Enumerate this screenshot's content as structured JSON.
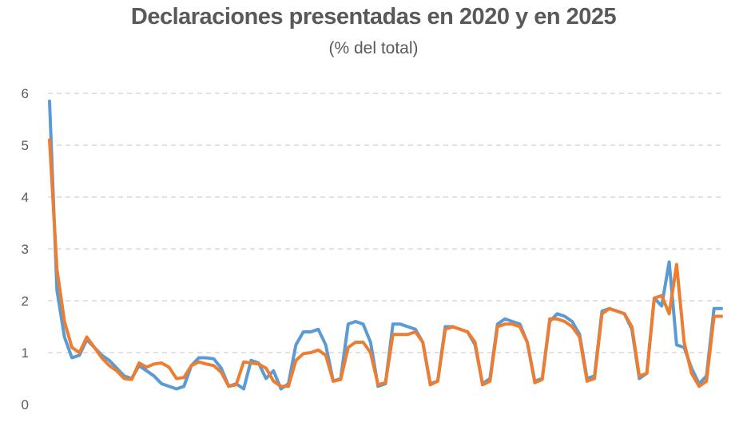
{
  "chart_data": {
    "type": "line",
    "title": "Declaraciones presentadas en 2020 y en 2025",
    "subtitle": "(% del total)",
    "xlabel": "",
    "ylabel": "",
    "ylim": [
      0,
      6
    ],
    "yticks": [
      "0",
      "1",
      "2",
      "3",
      "4",
      "5",
      "6"
    ],
    "grid": true,
    "legend": "none",
    "series": [
      {
        "color": "#5B9BD5",
        "x": [
          0,
          1,
          2,
          3,
          4,
          5,
          6,
          7,
          8,
          9,
          10,
          11,
          12,
          13,
          14,
          15,
          16,
          17,
          18,
          19,
          20,
          21,
          22,
          23,
          24,
          25,
          26,
          27,
          28,
          29,
          30,
          31,
          32,
          33,
          34,
          35,
          36,
          37,
          38,
          39,
          40,
          41,
          42,
          43,
          44,
          45,
          46,
          47,
          48,
          49,
          50,
          51,
          52,
          53,
          54,
          55,
          56,
          57,
          58,
          59,
          60,
          61,
          62,
          63,
          64,
          65,
          66,
          67,
          68,
          69,
          70,
          71,
          72,
          73,
          74,
          75,
          76,
          77,
          78,
          79,
          80,
          81,
          82,
          83,
          84,
          85,
          86,
          87,
          88,
          89,
          90
        ],
        "y": [
          5.85,
          2.2,
          1.3,
          0.9,
          0.95,
          1.25,
          1.1,
          0.95,
          0.85,
          0.7,
          0.55,
          0.5,
          0.75,
          0.65,
          0.55,
          0.4,
          0.35,
          0.3,
          0.35,
          0.75,
          0.9,
          0.9,
          0.88,
          0.7,
          0.35,
          0.4,
          0.3,
          0.85,
          0.8,
          0.5,
          0.65,
          0.3,
          0.4,
          1.15,
          1.4,
          1.4,
          1.45,
          1.15,
          0.45,
          0.5,
          1.55,
          1.6,
          1.55,
          1.2,
          0.35,
          0.4,
          1.55,
          1.55,
          1.5,
          1.45,
          1.2,
          0.4,
          0.45,
          1.5,
          1.5,
          1.45,
          1.4,
          1.15,
          0.4,
          0.5,
          1.55,
          1.65,
          1.6,
          1.55,
          1.2,
          0.45,
          0.5,
          1.6,
          1.75,
          1.7,
          1.6,
          1.35,
          0.5,
          0.55,
          1.8,
          1.85,
          1.8,
          1.75,
          1.45,
          0.5,
          0.6,
          2.05,
          1.9,
          2.75,
          1.15,
          1.1,
          0.7,
          0.4,
          0.55,
          1.85,
          1.85
        ]
      },
      {
        "color": "#ED7D31",
        "x": [
          0,
          1,
          2,
          3,
          4,
          5,
          6,
          7,
          8,
          9,
          10,
          11,
          12,
          13,
          14,
          15,
          16,
          17,
          18,
          19,
          20,
          21,
          22,
          23,
          24,
          25,
          26,
          27,
          28,
          29,
          30,
          31,
          32,
          33,
          34,
          35,
          36,
          37,
          38,
          39,
          40,
          41,
          42,
          43,
          44,
          45,
          46,
          47,
          48,
          49,
          50,
          51,
          52,
          53,
          54,
          55,
          56,
          57,
          58,
          59,
          60,
          61,
          62,
          63,
          64,
          65,
          66,
          67,
          68,
          69,
          70,
          71,
          72,
          73,
          74,
          75,
          76,
          77,
          78,
          79,
          80,
          81,
          82,
          83,
          84,
          85,
          86,
          87,
          88,
          89,
          90
        ],
        "y": [
          5.1,
          2.6,
          1.6,
          1.1,
          1.0,
          1.3,
          1.1,
          0.9,
          0.75,
          0.65,
          0.5,
          0.48,
          0.8,
          0.72,
          0.78,
          0.8,
          0.72,
          0.5,
          0.52,
          0.75,
          0.82,
          0.78,
          0.75,
          0.62,
          0.35,
          0.38,
          0.82,
          0.8,
          0.78,
          0.7,
          0.45,
          0.35,
          0.35,
          0.85,
          0.98,
          1.0,
          1.05,
          0.95,
          0.45,
          0.48,
          1.1,
          1.2,
          1.2,
          1.0,
          0.38,
          0.42,
          1.35,
          1.35,
          1.35,
          1.4,
          1.2,
          0.38,
          0.45,
          1.45,
          1.5,
          1.45,
          1.4,
          1.2,
          0.38,
          0.45,
          1.5,
          1.55,
          1.55,
          1.5,
          1.2,
          0.42,
          0.48,
          1.65,
          1.65,
          1.6,
          1.5,
          1.3,
          0.45,
          0.5,
          1.75,
          1.85,
          1.8,
          1.75,
          1.5,
          0.55,
          0.6,
          2.05,
          2.1,
          1.75,
          2.7,
          1.2,
          0.6,
          0.35,
          0.45,
          1.7,
          1.7
        ]
      }
    ]
  }
}
